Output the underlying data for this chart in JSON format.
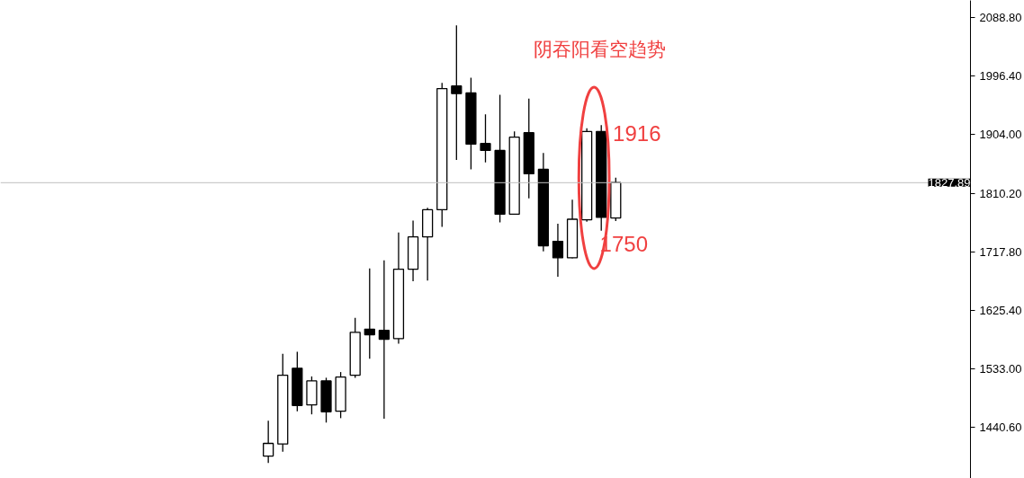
{
  "chart_data": {
    "type": "candlestick",
    "title": "阴吞阳看空趋势",
    "categories": [
      null,
      null,
      null,
      null,
      null,
      null,
      null,
      null,
      null,
      null,
      null,
      null,
      null,
      null,
      null,
      null,
      null,
      null,
      null,
      null,
      null,
      null,
      null,
      null,
      null,
      null,
      null,
      null,
      null,
      null,
      null,
      null,
      null,
      null,
      null,
      null,
      null,
      null,
      null,
      null,
      null,
      null,
      null,
      null,
      null,
      null,
      null,
      null,
      null,
      null,
      null,
      null,
      null,
      null,
      null,
      null,
      null,
      null,
      null,
      null,
      null,
      null,
      null,
      null,
      null,
      null,
      null
    ],
    "ohlc": [
      null,
      null,
      null,
      null,
      null,
      null,
      null,
      null,
      null,
      null,
      null,
      null,
      null,
      null,
      null,
      null,
      null,
      null,
      [
        1395,
        1451,
        1384,
        1415
      ],
      [
        1414,
        1557,
        1402,
        1523
      ],
      [
        1534,
        1560,
        1466,
        1475
      ],
      [
        1476,
        1521,
        1461,
        1514
      ],
      [
        1514,
        1519,
        1448,
        1465
      ],
      [
        1466,
        1528,
        1455,
        1520
      ],
      [
        1523,
        1614,
        1519,
        1591
      ],
      [
        1596,
        1692,
        1549,
        1587
      ],
      [
        1594,
        1705,
        1454,
        1580
      ],
      [
        1581,
        1749,
        1573,
        1691
      ],
      [
        1691,
        1768,
        1672,
        1742
      ],
      [
        1742,
        1788,
        1673,
        1785
      ],
      [
        1785,
        1986,
        1758,
        1977
      ],
      [
        1981,
        2077,
        1864,
        1969
      ],
      [
        1970,
        1994,
        1849,
        1889
      ],
      [
        1890,
        1936,
        1860,
        1879
      ],
      [
        1879,
        1967,
        1765,
        1778
      ],
      [
        1778,
        1909,
        1777,
        1900
      ],
      [
        1907,
        1961,
        1803,
        1842
      ],
      [
        1849,
        1875,
        1719,
        1728
      ],
      [
        1735,
        1763,
        1679,
        1709
      ],
      [
        1709,
        1801,
        1708,
        1770
      ],
      [
        1769,
        1914,
        1766,
        1909
      ],
      [
        1909,
        1919,
        1752,
        1773
      ],
      [
        1772,
        1836,
        1767,
        1828
      ],
      null,
      null,
      null,
      null,
      null,
      null,
      null,
      null,
      null,
      null,
      null,
      null,
      null,
      null,
      null,
      null,
      null,
      null,
      null,
      null,
      null,
      null,
      null,
      null
    ],
    "ylim": [
      1359.5,
      2116.5
    ],
    "yticks": [
      {
        "value": 2088.8,
        "label": "2088.80"
      },
      {
        "value": 1996.4,
        "label": "1996.40"
      },
      {
        "value": 1904.0,
        "label": "1904.00"
      },
      {
        "value": 1810.2,
        "label": "1810.20"
      },
      {
        "value": 1717.8,
        "label": "1717.80"
      },
      {
        "value": 1625.4,
        "label": "1625.40"
      },
      {
        "value": 1533.0,
        "label": "1533.00"
      },
      {
        "value": 1440.6,
        "label": "1440.60"
      }
    ],
    "ref_lines": [
      {
        "axis": "y",
        "value": 1827.89,
        "label": "1827.89",
        "color": "#c0c0c0"
      }
    ],
    "annotations": [
      "1916",
      "1750"
    ],
    "tick_labels": "y",
    "grid": false
  }
}
